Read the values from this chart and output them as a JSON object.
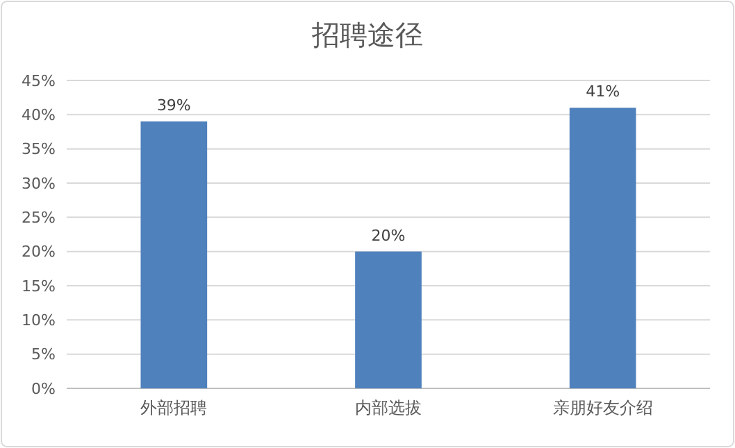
{
  "chart_data": {
    "type": "bar",
    "title": "招聘途径",
    "categories": [
      "外部招聘",
      "内部选拔",
      "亲朋好友介绍"
    ],
    "values": [
      39,
      20,
      41
    ],
    "value_labels": [
      "39%",
      "20%",
      "41%"
    ],
    "color": "#4f81bd",
    "ylim": [
      0,
      45
    ],
    "yticks": [
      {
        "value": 0,
        "label": "0%"
      },
      {
        "value": 5,
        "label": "5%"
      },
      {
        "value": 10,
        "label": "10%"
      },
      {
        "value": 15,
        "label": "15%"
      },
      {
        "value": 20,
        "label": "20%"
      },
      {
        "value": 25,
        "label": "25%"
      },
      {
        "value": 30,
        "label": "30%"
      },
      {
        "value": 35,
        "label": "35%"
      },
      {
        "value": 40,
        "label": "40%"
      },
      {
        "value": 45,
        "label": "45%"
      }
    ],
    "grid": "y"
  }
}
